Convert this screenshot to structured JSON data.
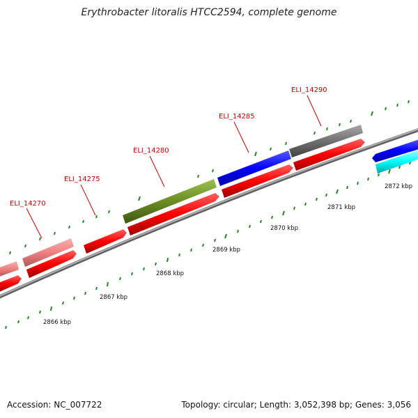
{
  "title": "Erythrobacter litoralis HTCC2594, complete genome",
  "accession_text": "Accession: NC_007722",
  "summary_text": "Topology: circular; Length: 3,052,398 bp; Genes: 3,056",
  "colors": {
    "backbone": "#8a8a8a",
    "cds_red": "#ff0000",
    "salmon": "#f08080",
    "olive": "#6b8e23",
    "blue": "#0000ff",
    "gray": "#707070",
    "cyan": "#00ffff",
    "tick": "#228b22",
    "label": "#cc0000"
  },
  "gene_labels": [
    "ELI_14270",
    "ELI_14275",
    "ELI_14280",
    "ELI_14285",
    "ELI_14290"
  ],
  "kbp_labels": [
    "2866 kbp",
    "2867 kbp",
    "2868 kbp",
    "2869 kbp",
    "2870 kbp",
    "2871 kbp",
    "2872 kbp"
  ]
}
